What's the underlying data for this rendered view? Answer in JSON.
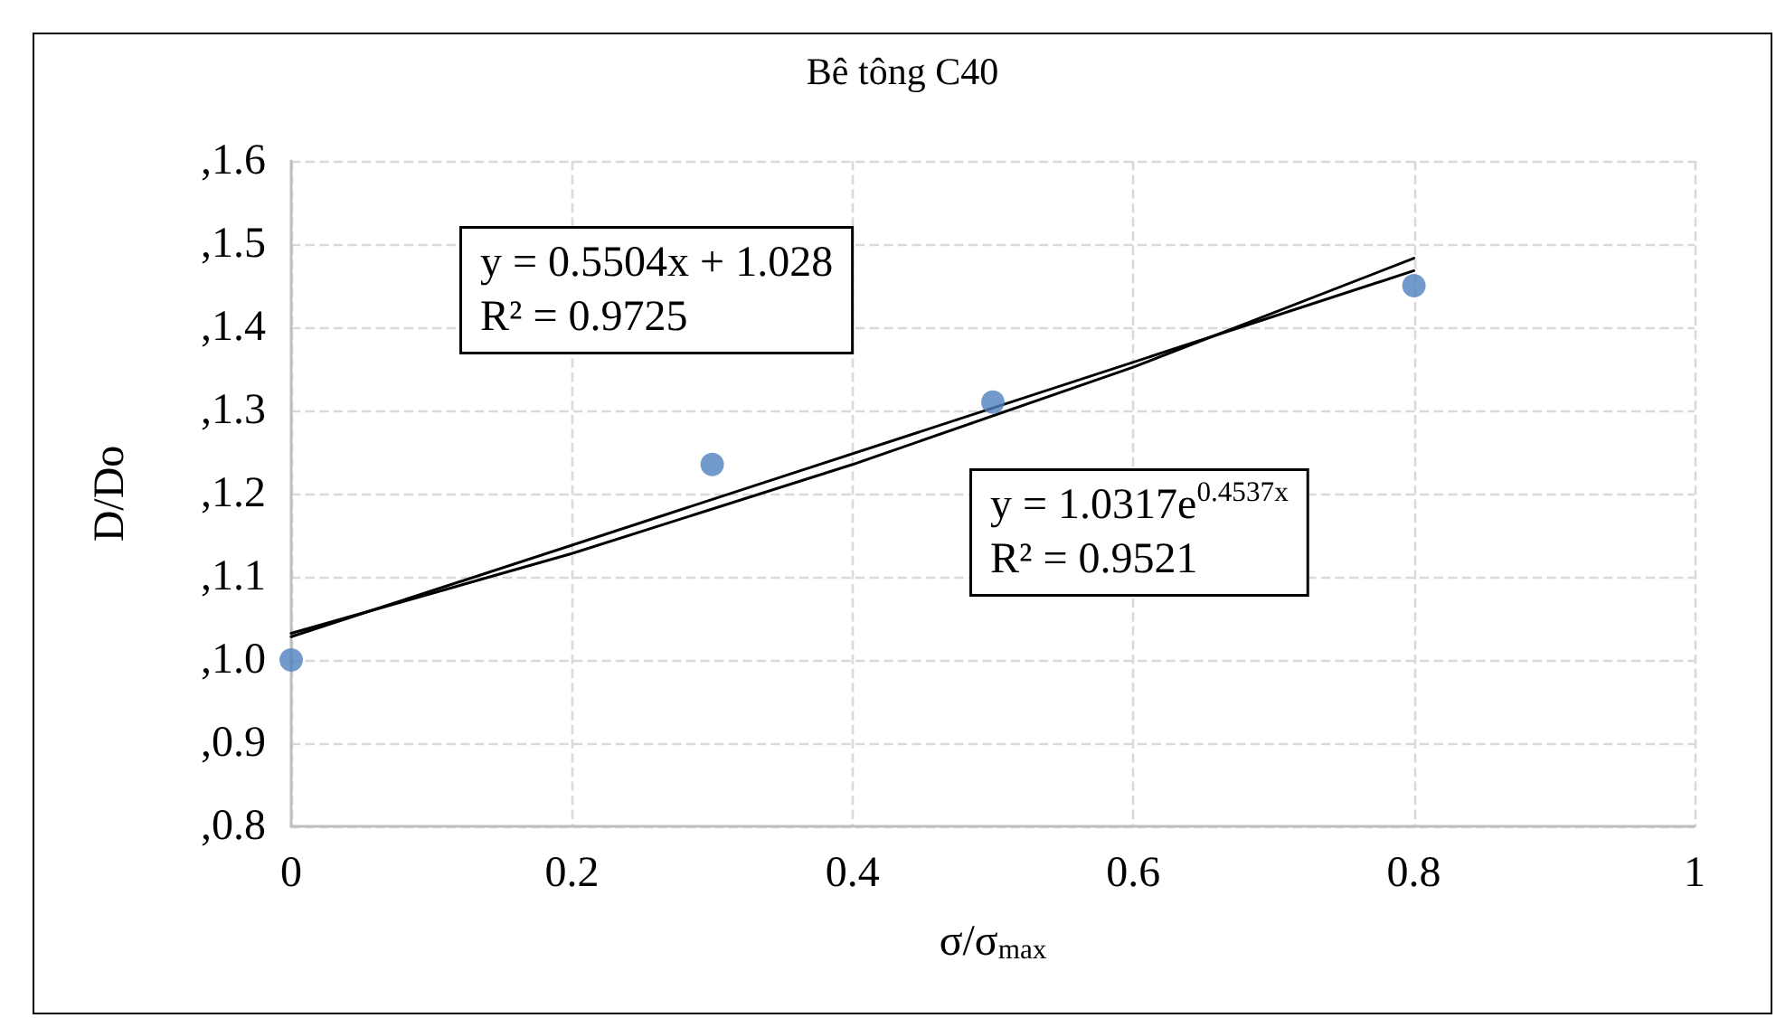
{
  "chart_data": {
    "type": "scatter",
    "title": "Bê tông C40",
    "xlabel": "σ/σ$_{max}$",
    "ylabel": "D/Do",
    "x": [
      0,
      0.3,
      0.5,
      0.8
    ],
    "series": [
      {
        "type": "scatter",
        "color": "#4f81bd",
        "values": [
          1.0,
          1.235,
          1.31,
          1.45
        ],
        "marker": "circle"
      },
      {
        "type": "line",
        "color": "#000000",
        "x": [
          0,
          0.8
        ],
        "values": [
          1.028,
          1.468
        ],
        "marker": "none",
        "line_style": "solid"
      },
      {
        "type": "line",
        "color": "#000000",
        "x": [
          0,
          0.2,
          0.4,
          0.6,
          0.8
        ],
        "values": [
          1.032,
          1.128,
          1.235,
          1.352,
          1.483
        ],
        "marker": "none",
        "line_style": "solid"
      }
    ],
    "annotations": [
      "y = 0.5504x + 1.028\nR² = 0.9725",
      "y = 1.0317e$^{0.4537x}$\nR² = 0.9521"
    ],
    "xlim": [
      0,
      1
    ],
    "xticks": [
      0,
      0.2,
      0.4,
      0.6,
      0.8,
      1
    ],
    "ylim": [
      0.8,
      1.6
    ],
    "yticks": [
      {
        "value": 0.8,
        "label": ",0.8"
      },
      {
        "value": 0.9,
        "label": ",0.9"
      },
      {
        "value": 1.0,
        "label": ",1.0"
      },
      {
        "value": 1.1,
        "label": ",1.1"
      },
      {
        "value": 1.2,
        "label": ",1.2"
      },
      {
        "value": 1.3,
        "label": ",1.3"
      },
      {
        "value": 1.4,
        "label": ",1.4"
      },
      {
        "value": 1.5,
        "label": ",1.5"
      },
      {
        "value": 1.6,
        "label": ",1.6"
      }
    ],
    "grid": true,
    "legend": false
  }
}
